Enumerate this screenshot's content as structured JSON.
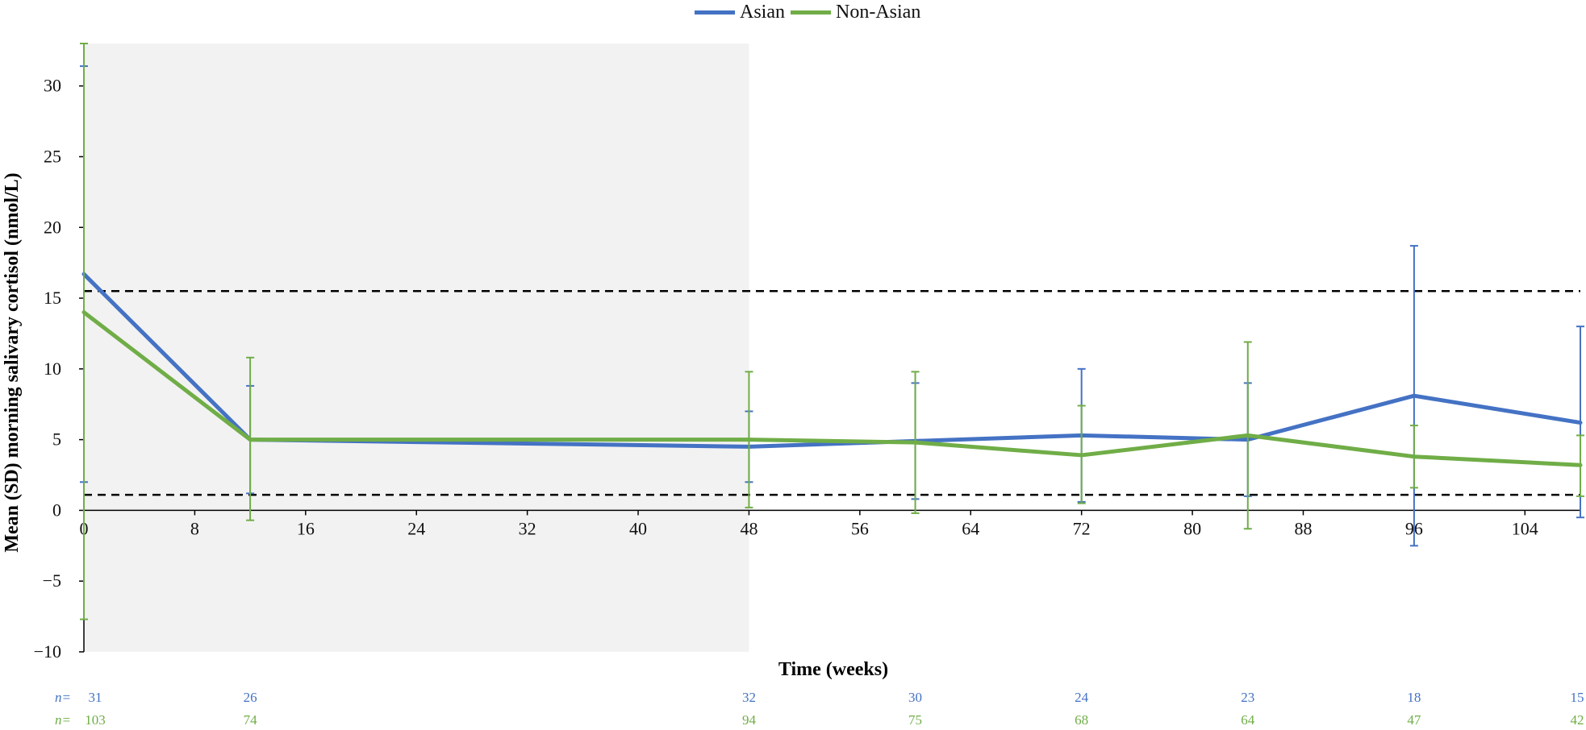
{
  "colors": {
    "asian": "#4472C4",
    "non_asian": "#70AD47",
    "shade": "#f2f2f2",
    "reference_line": "#000000"
  },
  "legend": [
    {
      "label": "Asian",
      "color": "#4472C4"
    },
    {
      "label": "Non-Asian",
      "color": "#70AD47"
    }
  ],
  "chart_data": {
    "type": "line",
    "title": "",
    "xlabel": "Time (weeks)",
    "ylabel": "Mean (SD) morning salivary cortisol (nmol/L)",
    "xlim": [
      0,
      108
    ],
    "ylim": [
      -10,
      33
    ],
    "x_ticks": [
      0,
      8,
      16,
      24,
      32,
      40,
      48,
      56,
      64,
      72,
      80,
      88,
      96,
      104
    ],
    "y_ticks": [
      -10,
      -5,
      0,
      5,
      10,
      15,
      20,
      25,
      30
    ],
    "y_tick_labels": [
      "−10",
      "−5",
      "0",
      "5",
      "10",
      "15",
      "20",
      "25",
      "30"
    ],
    "shaded_region": {
      "x_start": 0,
      "x_end": 48,
      "y_start": -10,
      "y_end": 33
    },
    "reference_lines": [
      15.5,
      1.1
    ],
    "error_bars": "SD",
    "series": [
      {
        "name": "Asian",
        "color": "#4472C4",
        "x": [
          0,
          12,
          48,
          60,
          72,
          84,
          96,
          108
        ],
        "y": [
          16.7,
          5.0,
          4.5,
          4.9,
          5.3,
          5.0,
          8.1,
          6.2
        ],
        "err_low": [
          2.0,
          1.2,
          2.0,
          0.8,
          0.6,
          1.0,
          -2.5,
          -0.5
        ],
        "err_high": [
          31.4,
          8.8,
          7.0,
          9.0,
          10.0,
          9.0,
          18.7,
          13.0
        ],
        "n": [
          "31",
          "26",
          "32",
          "30",
          "24",
          "23",
          "18",
          "15"
        ]
      },
      {
        "name": "Non-Asian",
        "color": "#70AD47",
        "x": [
          0,
          12,
          48,
          60,
          72,
          84,
          96,
          108
        ],
        "y": [
          14.0,
          5.0,
          5.0,
          4.8,
          3.9,
          5.3,
          3.8,
          3.2
        ],
        "err_low": [
          -7.7,
          -0.7,
          0.2,
          -0.2,
          0.5,
          -1.3,
          1.6,
          1.0
        ],
        "err_high": [
          33.0,
          10.8,
          9.8,
          9.8,
          7.4,
          11.9,
          6.0,
          5.3
        ],
        "n": [
          "103",
          "74",
          "94",
          "75",
          "68",
          "64",
          "47",
          "42"
        ]
      }
    ]
  },
  "n_rows": [
    {
      "prefix": "n=",
      "color": "#4472C4",
      "values": [
        "31",
        "26",
        "32",
        "30",
        "24",
        "23",
        "18",
        "15"
      ]
    },
    {
      "prefix": "n=",
      "color": "#70AD47",
      "values": [
        "103",
        "74",
        "94",
        "75",
        "68",
        "64",
        "47",
        "42"
      ]
    }
  ]
}
